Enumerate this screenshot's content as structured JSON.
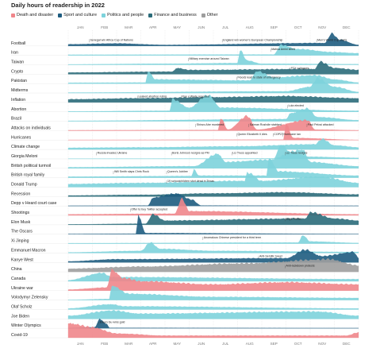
{
  "header": {
    "title": "Daily hours of readership in 2022"
  },
  "legend": [
    {
      "label": "Death and disaster",
      "color": "#f0868b"
    },
    {
      "label": "Sport and culture",
      "color": "#1e5c80"
    },
    {
      "label": "Politics and people",
      "color": "#7dd3dc"
    },
    {
      "label": "Finance and business",
      "color": "#2b6c7a"
    },
    {
      "label": "Other",
      "color": "#9e9e9e"
    }
  ],
  "chart_data": {
    "type": "area",
    "title": "Daily hours of readership in 2022",
    "x_labels": [
      "JAN",
      "FEB",
      "MAR",
      "APR",
      "MAY",
      "JUN",
      "JUL",
      "AUG",
      "SEP",
      "OCT",
      "NOV",
      "DEC"
    ],
    "x_labels_bottom": [
      "JAN",
      "FEB",
      "MAR",
      "APR",
      "MAY",
      "JUN",
      "JUL",
      "AUG",
      "SEP",
      "OCT",
      "NOV",
      "DEC"
    ],
    "grid": true,
    "series": [
      {
        "name": "Football",
        "category": "Sport and culture",
        "shape": [
          [
            0,
            0.08
          ],
          [
            2,
            0.12
          ],
          [
            4,
            0.05
          ],
          [
            10.6,
            0.14
          ],
          [
            10.9,
            0.6
          ],
          [
            11.2,
            0.3
          ],
          [
            12,
            0.05
          ]
        ]
      },
      {
        "name": "Iran",
        "category": "Politics and people",
        "shape": [
          [
            0,
            0.03
          ],
          [
            8.5,
            0.04
          ],
          [
            8.8,
            0.5
          ],
          [
            9.5,
            0.3
          ],
          [
            11,
            0.15
          ],
          [
            12,
            0.1
          ]
        ]
      },
      {
        "name": "Taiwan",
        "category": "Politics and people",
        "shape": [
          [
            0,
            0.02
          ],
          [
            4,
            0.05
          ],
          [
            7,
            0.08
          ],
          [
            7.1,
            0.7
          ],
          [
            7.4,
            0.2
          ],
          [
            8,
            0.05
          ],
          [
            12,
            0.03
          ]
        ]
      },
      {
        "name": "Crypto",
        "category": "Finance and business",
        "shape": [
          [
            0,
            0.08
          ],
          [
            4.3,
            0.12
          ],
          [
            4.5,
            0.3
          ],
          [
            5,
            0.2
          ],
          [
            10.2,
            0.25
          ],
          [
            10.4,
            0.6
          ],
          [
            11,
            0.3
          ],
          [
            12,
            0.2
          ]
        ]
      },
      {
        "name": "Pakistan",
        "category": "Politics and people",
        "shape": [
          [
            0,
            0.04
          ],
          [
            3.2,
            0.05
          ],
          [
            3.3,
            0.6
          ],
          [
            3.6,
            0.2
          ],
          [
            7.5,
            0.15
          ],
          [
            7.8,
            0.6
          ],
          [
            8.5,
            0.3
          ],
          [
            10.2,
            0.4
          ],
          [
            11,
            0.2
          ],
          [
            12,
            0.05
          ]
        ]
      },
      {
        "name": "Midterms",
        "category": "Politics and people",
        "shape": [
          [
            0,
            0.02
          ],
          [
            9,
            0.08
          ],
          [
            10,
            0.3
          ],
          [
            10.3,
            0.7
          ],
          [
            11,
            0.3
          ],
          [
            12,
            0.05
          ]
        ]
      },
      {
        "name": "Inflation",
        "category": "Finance and business",
        "shape": [
          [
            0,
            0.15
          ],
          [
            3,
            0.2
          ],
          [
            6,
            0.25
          ],
          [
            9,
            0.3
          ],
          [
            12,
            0.2
          ]
        ]
      },
      {
        "name": "Abortion",
        "category": "Politics and people",
        "shape": [
          [
            0,
            0.02
          ],
          [
            4.2,
            0.05
          ],
          [
            4.3,
            0.6
          ],
          [
            5,
            0.2
          ],
          [
            5.8,
            0.8
          ],
          [
            6.3,
            0.2
          ],
          [
            12,
            0.05
          ]
        ]
      },
      {
        "name": "Brazil",
        "category": "Politics and people",
        "shape": [
          [
            0,
            0.02
          ],
          [
            9,
            0.1
          ],
          [
            9.2,
            0.4
          ],
          [
            9.9,
            0.6
          ],
          [
            10.3,
            0.2
          ],
          [
            12,
            0.05
          ]
        ]
      },
      {
        "name": "Attacks on individuals",
        "category": "Death and disaster",
        "shape": [
          [
            0,
            0.02
          ],
          [
            6.2,
            0.03
          ],
          [
            6.3,
            0.6
          ],
          [
            6.6,
            0.05
          ],
          [
            7.4,
            0.7
          ],
          [
            7.8,
            0.05
          ],
          [
            9.9,
            0.5
          ],
          [
            10.2,
            0.05
          ],
          [
            12,
            0.02
          ]
        ]
      },
      {
        "name": "Hurricanes",
        "category": "Death and disaster",
        "shape": [
          [
            0,
            0.01
          ],
          [
            8.9,
            0.02
          ],
          [
            9,
            0.8
          ],
          [
            9.3,
            0.1
          ],
          [
            12,
            0.01
          ]
        ]
      },
      {
        "name": "Climate change",
        "category": "Politics and people",
        "shape": [
          [
            0,
            0.08
          ],
          [
            3,
            0.1
          ],
          [
            7,
            0.15
          ],
          [
            10.2,
            0.25
          ],
          [
            10.5,
            0.5
          ],
          [
            11,
            0.2
          ],
          [
            12,
            0.1
          ]
        ]
      },
      {
        "name": "Giorgia Meloni",
        "category": "Politics and people",
        "shape": [
          [
            0,
            0.01
          ],
          [
            8.5,
            0.02
          ],
          [
            8.8,
            0.7
          ],
          [
            9.2,
            0.3
          ],
          [
            10,
            0.1
          ],
          [
            12,
            0.05
          ]
        ]
      },
      {
        "name": "British political turmoil",
        "category": "Politics and people",
        "shape": [
          [
            0,
            0.05
          ],
          [
            5.2,
            0.1
          ],
          [
            6.2,
            0.7
          ],
          [
            6.5,
            0.3
          ],
          [
            8.2,
            0.4
          ],
          [
            9.7,
            0.9
          ],
          [
            10,
            0.3
          ],
          [
            12,
            0.1
          ]
        ]
      },
      {
        "name": "British royal family",
        "category": "Politics and people",
        "shape": [
          [
            0,
            0.05
          ],
          [
            5.1,
            0.08
          ],
          [
            5.2,
            0.4
          ],
          [
            5.4,
            0.1
          ],
          [
            8.2,
            0.1
          ],
          [
            8.3,
            0.95
          ],
          [
            8.7,
            0.3
          ],
          [
            12,
            0.1
          ]
        ]
      },
      {
        "name": "Donald Trump",
        "category": "Politics and people",
        "shape": [
          [
            0,
            0.15
          ],
          [
            3,
            0.2
          ],
          [
            7.3,
            0.3
          ],
          [
            7.4,
            0.7
          ],
          [
            8,
            0.3
          ],
          [
            10.4,
            0.5
          ],
          [
            12,
            0.2
          ]
        ]
      },
      {
        "name": "Recession",
        "category": "Finance and business",
        "shape": [
          [
            0,
            0.05
          ],
          [
            3,
            0.08
          ],
          [
            6,
            0.15
          ],
          [
            9,
            0.2
          ],
          [
            12,
            0.1
          ]
        ]
      },
      {
        "name": "Depp v Heard court case",
        "category": "Sport and culture",
        "shape": [
          [
            0,
            0.01
          ],
          [
            3.3,
            0.02
          ],
          [
            3.5,
            0.4
          ],
          [
            4.5,
            0.6
          ],
          [
            5.1,
            0.3
          ],
          [
            5.5,
            0.02
          ],
          [
            12,
            0.01
          ]
        ]
      },
      {
        "name": "Shootings",
        "category": "Death and disaster",
        "shape": [
          [
            0,
            0.05
          ],
          [
            4.4,
            0.08
          ],
          [
            4.7,
            0.8
          ],
          [
            5,
            0.2
          ],
          [
            12,
            0.05
          ]
        ]
      },
      {
        "name": "Elon Musk",
        "category": "Finance and business",
        "shape": [
          [
            0,
            0.02
          ],
          [
            3.2,
            0.05
          ],
          [
            3.5,
            0.5
          ],
          [
            4,
            0.2
          ],
          [
            9.8,
            0.3
          ],
          [
            10,
            0.6
          ],
          [
            11,
            0.3
          ],
          [
            12,
            0.2
          ]
        ]
      },
      {
        "name": "The Oscars",
        "category": "Sport and culture",
        "shape": [
          [
            0,
            0.01
          ],
          [
            2.8,
            0.02
          ],
          [
            2.9,
            0.9
          ],
          [
            3.2,
            0.05
          ],
          [
            12,
            0.01
          ]
        ]
      },
      {
        "name": "Xi Jinping",
        "category": "Politics and people",
        "shape": [
          [
            0,
            0.02
          ],
          [
            9.5,
            0.05
          ],
          [
            9.7,
            0.4
          ],
          [
            10,
            0.1
          ],
          [
            12,
            0.03
          ]
        ]
      },
      {
        "name": "Emmanuel Macron",
        "category": "Politics and people",
        "shape": [
          [
            0,
            0.03
          ],
          [
            3,
            0.1
          ],
          [
            3.4,
            0.5
          ],
          [
            3.8,
            0.2
          ],
          [
            6,
            0.1
          ],
          [
            12,
            0.05
          ]
        ]
      },
      {
        "name": "Kanye West",
        "category": "Sport and culture",
        "shape": [
          [
            0,
            0.05
          ],
          [
            2,
            0.15
          ],
          [
            9,
            0.2
          ],
          [
            9.8,
            0.6
          ],
          [
            10.5,
            0.3
          ],
          [
            11.8,
            0.5
          ],
          [
            12,
            0.2
          ]
        ]
      },
      {
        "name": "China",
        "category": "Other",
        "shape": [
          [
            0,
            0.15
          ],
          [
            3,
            0.25
          ],
          [
            7.2,
            0.4
          ],
          [
            10.8,
            0.6
          ],
          [
            12,
            0.3
          ]
        ]
      },
      {
        "name": "Canada",
        "category": "Politics and people",
        "shape": [
          [
            0,
            0.05
          ],
          [
            1.4,
            0.4
          ],
          [
            1.8,
            0.2
          ],
          [
            12,
            0.1
          ]
        ]
      },
      {
        "name": "Ukraine war",
        "category": "Death and disaster",
        "shape": [
          [
            0,
            0.05
          ],
          [
            1.6,
            0.15
          ],
          [
            1.8,
            1
          ],
          [
            2.3,
            0.6
          ],
          [
            3,
            0.45
          ],
          [
            6,
            0.3
          ],
          [
            9,
            0.4
          ],
          [
            12,
            0.3
          ]
        ]
      },
      {
        "name": "Volodymyr Zelensky",
        "category": "Politics and people",
        "shape": [
          [
            0,
            0.01
          ],
          [
            1.7,
            0.05
          ],
          [
            1.8,
            0.7
          ],
          [
            2.5,
            0.3
          ],
          [
            6,
            0.15
          ],
          [
            12,
            0.1
          ]
        ]
      },
      {
        "name": "Olaf Scholz",
        "category": "Politics and people",
        "shape": [
          [
            0,
            0.05
          ],
          [
            1.8,
            0.25
          ],
          [
            2.3,
            0.15
          ],
          [
            12,
            0.05
          ]
        ]
      },
      {
        "name": "Joe Biden",
        "category": "Politics and people",
        "shape": [
          [
            0,
            0.15
          ],
          [
            1.8,
            0.4
          ],
          [
            3,
            0.25
          ],
          [
            10.3,
            0.35
          ],
          [
            12,
            0.15
          ]
        ]
      },
      {
        "name": "Winter Olympics",
        "category": "Sport and culture",
        "shape": [
          [
            0,
            0.01
          ],
          [
            1.1,
            0.05
          ],
          [
            1.3,
            0.45
          ],
          [
            1.6,
            0.2
          ],
          [
            1.7,
            0.02
          ],
          [
            12,
            0.01
          ]
        ]
      },
      {
        "name": "Covid-19",
        "category": "Death and disaster",
        "shape": [
          [
            0,
            0.7
          ],
          [
            1,
            0.5
          ],
          [
            2,
            0.2
          ],
          [
            4,
            0.1
          ],
          [
            11.5,
            0.1
          ],
          [
            12,
            0.25
          ]
        ]
      }
    ],
    "annotations": [
      {
        "row": 0,
        "month": 0.9,
        "text": "Senegal win Africa Cup of Nations"
      },
      {
        "row": 0,
        "month": 6.4,
        "text": "England win women's European Championship"
      },
      {
        "row": 0,
        "month": 10.3,
        "text": "Men's World Cup starts"
      },
      {
        "row": 1,
        "month": 8.4,
        "text": "Mahsa Amini killed"
      },
      {
        "row": 2,
        "month": 5.0,
        "text": "Military exercise around Taiwan"
      },
      {
        "row": 3,
        "month": 9.2,
        "text": "FTX collapses"
      },
      {
        "row": 4,
        "month": 7.0,
        "text": "Floods lead to state of emergency"
      },
      {
        "row": 6,
        "month": 2.9,
        "text": "Leaked abortion ruling"
      },
      {
        "row": 6,
        "month": 4.7,
        "text": "Roe v Wade repealed"
      },
      {
        "row": 7,
        "month": 9.1,
        "text": "Lula elected"
      },
      {
        "row": 9,
        "month": 5.3,
        "text": "Shinzo Abe murdered"
      },
      {
        "row": 9,
        "month": 7.5,
        "text": "Salman Rushdie stabbed"
      },
      {
        "row": 9,
        "month": 9.9,
        "text": "Paul Pelosi attacked"
      },
      {
        "row": 10,
        "month": 7.0,
        "text": "Queen Elizabeth II dies"
      },
      {
        "row": 10,
        "month": 8.9,
        "text": "Hurricane Ian"
      },
      {
        "row": 10,
        "month": 8.5,
        "text": "COP27"
      },
      {
        "row": 12,
        "month": 1.2,
        "text": "Russia invades Ukraine"
      },
      {
        "row": 12,
        "month": 4.3,
        "text": "Boris Johnson resigns as PM"
      },
      {
        "row": 12,
        "month": 6.8,
        "text": "Liz Truss appointed"
      },
      {
        "row": 12,
        "month": 9.0,
        "text": "Liz Truss resigns"
      },
      {
        "row": 14,
        "month": 1.9,
        "text": "Will Smith slaps Chris Rock"
      },
      {
        "row": 14,
        "month": 4.1,
        "text": "Queen's Jubilee"
      },
      {
        "row": 15,
        "month": 4.1,
        "text": "19 schoolchildren shot dead in Texas"
      },
      {
        "row": 18,
        "month": 2.6,
        "text": "Offer to buy Twitter accepted"
      },
      {
        "row": 19,
        "month": 9.0,
        "text": "Buys Twitter"
      },
      {
        "row": 21,
        "month": 5.6,
        "text": "Anomalous Chinese president for a third term"
      },
      {
        "row": 23,
        "month": 7.9,
        "text": "Anti-Semitic tweet"
      },
      {
        "row": 24,
        "month": 9.0,
        "text": "Anti-lockdown protests"
      },
      {
        "row": 30,
        "month": 1.3,
        "text": "Eileen Gu wins gold"
      }
    ]
  }
}
